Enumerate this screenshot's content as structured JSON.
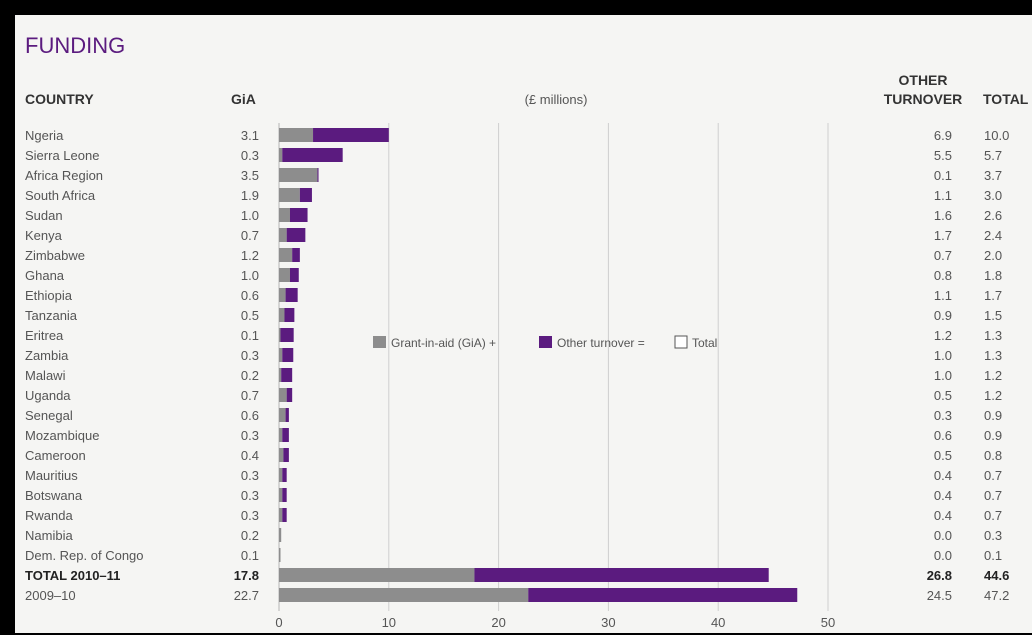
{
  "chart_data": {
    "type": "bar",
    "stacked": true,
    "orientation": "horizontal",
    "title": "FUNDING",
    "unit_label": "(£ millions)",
    "column_headers": {
      "country": "COUNTRY",
      "gia": "GiA",
      "other_line1": "OTHER",
      "other_line2": "TURNOVER",
      "total": "TOTAL"
    },
    "categories": [
      "Ngeria",
      "Sierra Leone",
      "Africa Region",
      "South Africa",
      "Sudan",
      "Kenya",
      "Zimbabwe",
      "Ghana",
      "Ethiopia",
      "Tanzania",
      "Eritrea",
      "Zambia",
      "Malawi",
      "Uganda",
      "Senegal",
      "Mozambique",
      "Cameroon",
      "Mauritius",
      "Botswana",
      "Rwanda",
      "Namibia",
      "Dem. Rep. of Congo",
      "TOTAL 2010–11",
      "2009–10"
    ],
    "bold_rows": [
      22
    ],
    "series": [
      {
        "name": "Grant-in-aid (GiA)",
        "values": [
          3.1,
          0.3,
          3.5,
          1.9,
          1.0,
          0.7,
          1.2,
          1.0,
          0.6,
          0.5,
          0.1,
          0.3,
          0.2,
          0.7,
          0.6,
          0.3,
          0.4,
          0.3,
          0.3,
          0.3,
          0.2,
          0.1,
          17.8,
          22.7
        ]
      },
      {
        "name": "Other turnover",
        "values": [
          6.9,
          5.5,
          0.1,
          1.1,
          1.6,
          1.7,
          0.7,
          0.8,
          1.1,
          0.9,
          1.2,
          1.0,
          1.0,
          0.5,
          0.3,
          0.6,
          0.5,
          0.4,
          0.4,
          0.4,
          0.0,
          0.0,
          26.8,
          24.5
        ]
      }
    ],
    "gia_text": [
      "3.1",
      "0.3",
      "3.5",
      "1.9",
      "1.0",
      "0.7",
      "1.2",
      "1.0",
      "0.6",
      "0.5",
      "0.1",
      "0.3",
      "0.2",
      "0.7",
      "0.6",
      "0.3",
      "0.4",
      "0.3",
      "0.3",
      "0.3",
      "0.2",
      "0.1",
      "17.8",
      "22.7"
    ],
    "other_text": [
      "6.9",
      "5.5",
      "0.1",
      "1.1",
      "1.6",
      "1.7",
      "0.7",
      "0.8",
      "1.1",
      "0.9",
      "1.2",
      "1.0",
      "1.0",
      "0.5",
      "0.3",
      "0.6",
      "0.5",
      "0.4",
      "0.4",
      "0.4",
      "0.0",
      "0.0",
      "26.8",
      "24.5"
    ],
    "totals": [
      "10.0",
      "5.7",
      "3.7",
      "3.0",
      "2.6",
      "2.4",
      "2.0",
      "1.8",
      "1.7",
      "1.5",
      "1.3",
      "1.3",
      "1.2",
      "1.2",
      "0.9",
      "0.9",
      "0.8",
      "0.7",
      "0.7",
      "0.7",
      "0.3",
      "0.1",
      "44.6",
      "47.2"
    ],
    "xlim": [
      0,
      50
    ],
    "xticks": [
      "0",
      "10",
      "20",
      "30",
      "40",
      "50"
    ],
    "grid": true,
    "legend": {
      "position": "center",
      "gia_label": "Grant-in-aid (GiA) +",
      "other_label": "Other turnover =",
      "total_label": "Total"
    },
    "colors": {
      "gia": "#8d8d8d",
      "other": "#5b1b7f",
      "title": "#5b1b7f",
      "text": "#444444"
    }
  }
}
